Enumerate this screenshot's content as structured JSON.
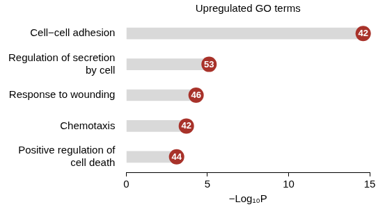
{
  "chart_data": {
    "type": "bar",
    "orientation": "horizontal",
    "title": "Upregulated GO terms",
    "x_label": "−Log₁₀P",
    "categories": [
      "Cell−cell adhesion",
      [
        "Regulation of secretion",
        "by cell"
      ],
      "Response to wounding",
      "Chemotaxis",
      [
        "Positive regulation of",
        "cell death"
      ]
    ],
    "values": [
      14.6,
      5.1,
      4.3,
      3.7,
      3.1
    ],
    "counts": [
      42,
      53,
      46,
      42,
      44
    ],
    "color": "#d9d9d9",
    "xlim": [
      0,
      15
    ],
    "xticks": [
      0,
      5,
      10,
      15
    ],
    "grid": false
  }
}
